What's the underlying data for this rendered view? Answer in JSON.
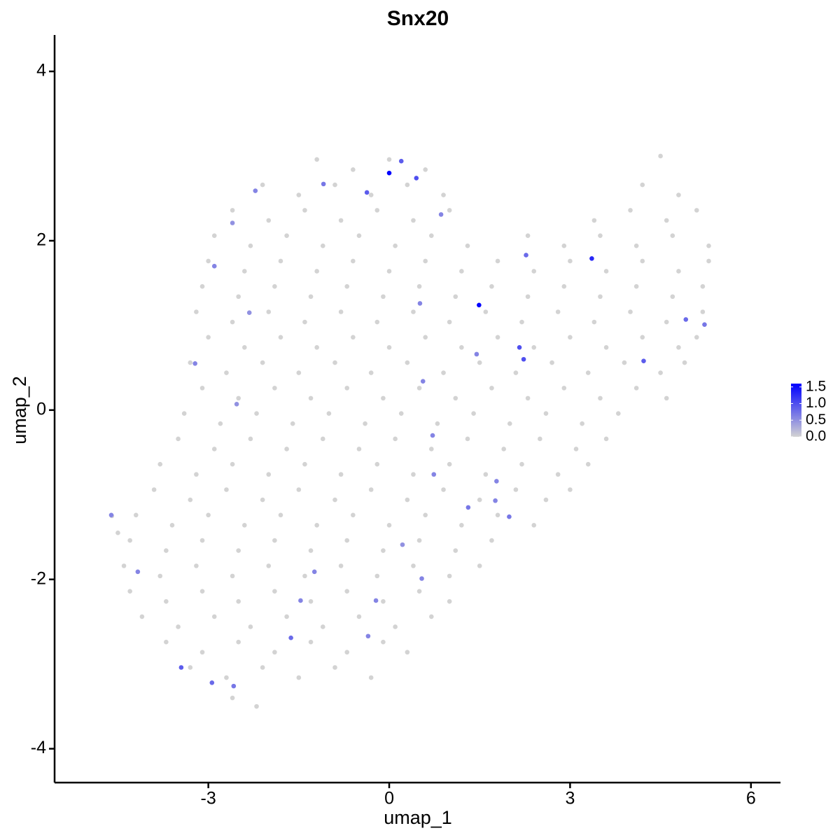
{
  "chart_data": {
    "type": "scatter",
    "title": "Snx20",
    "x_label": "umap_1",
    "y_label": "umap_2",
    "x": [
      -1.2,
      -0.6,
      0,
      0.6,
      4.5,
      -2.1,
      -1.5,
      -0.9,
      -0.3,
      0.3,
      0.9,
      4.2,
      4.8,
      -2.6,
      -2.0,
      -1.4,
      -0.8,
      -0.2,
      0.4,
      1.0,
      3.4,
      4.0,
      4.6,
      5.1,
      -2.9,
      -2.3,
      -1.7,
      -1.1,
      -0.5,
      0.1,
      0.7,
      1.3,
      2.3,
      2.9,
      3.5,
      4.1,
      4.7,
      5.3,
      -3.0,
      -2.4,
      -1.8,
      -1.2,
      -0.6,
      0,
      0.6,
      1.2,
      1.8,
      2.4,
      3.0,
      3.6,
      4.2,
      4.8,
      5.3,
      -3.1,
      -2.5,
      -1.9,
      -1.3,
      -0.7,
      -0.1,
      0.5,
      1.1,
      1.7,
      2.3,
      2.9,
      3.5,
      4.1,
      4.7,
      5.2,
      -3.2,
      -2.6,
      -2.0,
      -1.4,
      -0.8,
      -0.2,
      0.4,
      1.0,
      1.6,
      2.2,
      2.8,
      3.4,
      4.0,
      4.6,
      5.2,
      -3.0,
      -2.4,
      -1.8,
      -1.2,
      -0.6,
      0,
      0.6,
      1.2,
      1.8,
      2.4,
      3.0,
      3.6,
      4.2,
      4.8,
      5.1,
      -3.3,
      -2.7,
      -2.1,
      -1.5,
      -0.9,
      -0.3,
      0.3,
      0.9,
      1.5,
      2.1,
      2.7,
      3.3,
      3.9,
      4.5,
      4.9,
      -3.1,
      -2.5,
      -1.9,
      -1.3,
      -0.7,
      -0.1,
      0.5,
      1.1,
      1.7,
      2.3,
      2.9,
      3.5,
      4.1,
      4.6,
      -3.4,
      -2.8,
      -2.2,
      -1.6,
      -1.0,
      -0.4,
      0.2,
      0.8,
      1.4,
      2.0,
      2.6,
      3.2,
      3.8,
      -3.5,
      -2.9,
      -2.3,
      -1.7,
      -1.1,
      -0.5,
      0.1,
      0.7,
      1.3,
      1.9,
      2.5,
      3.1,
      3.6,
      -3.8,
      -3.2,
      -2.6,
      -2.0,
      -1.4,
      -0.8,
      -0.2,
      0.4,
      1.0,
      1.6,
      2.2,
      2.8,
      3.3,
      -3.9,
      -3.3,
      -2.7,
      -2.1,
      -1.5,
      -0.9,
      -0.3,
      0.3,
      0.9,
      1.5,
      2.1,
      2.6,
      3.0,
      -4.2,
      -3.6,
      -3.0,
      -2.4,
      -1.8,
      -1.2,
      -0.6,
      0,
      0.6,
      1.2,
      1.8,
      2.4,
      -4.3,
      -3.7,
      -3.1,
      -2.5,
      -1.9,
      -1.3,
      -0.7,
      -0.1,
      0.5,
      1.1,
      1.7,
      -4.4,
      -3.8,
      -3.2,
      -2.6,
      -2.0,
      -1.4,
      -0.8,
      -0.2,
      0.4,
      1.0,
      1.5,
      -4.3,
      -3.7,
      -3.1,
      -2.5,
      -1.9,
      -1.3,
      -0.7,
      -0.1,
      0.5,
      1.0,
      -4.1,
      -3.5,
      -2.9,
      -2.3,
      -1.7,
      -1.1,
      -0.5,
      0.1,
      0.7,
      -3.7,
      -3.1,
      -2.5,
      -1.9,
      -1.3,
      -0.7,
      -0.1,
      0.3,
      -3.3,
      -2.7,
      -2.1,
      -1.5,
      -0.9,
      -0.3,
      -2.6,
      -2.2,
      -4.6,
      -4.5,
      -4.61,
      -4.17,
      -3.45,
      -3.22,
      -2.94,
      -2.9,
      -2.6,
      -2.58,
      -2.53,
      -2.32,
      -2.22,
      -1.63,
      -1.47,
      -1.24,
      -1.09,
      -0.37,
      -0.35,
      -0.22,
      0.0,
      0.2,
      0.22,
      0.45,
      0.51,
      0.54,
      0.56,
      0.72,
      0.74,
      0.86,
      1.31,
      1.45,
      1.49,
      1.76,
      1.78,
      1.99,
      2.16,
      2.23,
      2.27,
      3.36,
      4.22,
      4.92,
      5.23
    ],
    "y": [
      2.96,
      2.84,
      2.96,
      2.84,
      3.0,
      2.66,
      2.54,
      2.66,
      2.54,
      2.66,
      2.54,
      2.66,
      2.54,
      2.36,
      2.24,
      2.36,
      2.24,
      2.36,
      2.24,
      2.36,
      2.24,
      2.36,
      2.24,
      2.36,
      2.06,
      1.94,
      2.06,
      1.94,
      2.06,
      1.94,
      2.06,
      1.94,
      2.06,
      1.94,
      2.06,
      1.94,
      2.06,
      1.94,
      1.76,
      1.64,
      1.76,
      1.64,
      1.76,
      1.64,
      1.76,
      1.64,
      1.76,
      1.64,
      1.76,
      1.64,
      1.76,
      1.64,
      1.76,
      1.46,
      1.34,
      1.46,
      1.34,
      1.46,
      1.34,
      1.46,
      1.34,
      1.46,
      1.34,
      1.46,
      1.34,
      1.46,
      1.34,
      1.46,
      1.16,
      1.04,
      1.16,
      1.04,
      1.16,
      1.04,
      1.16,
      1.04,
      1.16,
      1.04,
      1.16,
      1.04,
      1.16,
      1.04,
      1.16,
      0.86,
      0.74,
      0.86,
      0.74,
      0.86,
      0.74,
      0.86,
      0.74,
      0.86,
      0.74,
      0.86,
      0.74,
      0.86,
      0.74,
      0.86,
      0.56,
      0.44,
      0.56,
      0.44,
      0.56,
      0.44,
      0.56,
      0.44,
      0.56,
      0.44,
      0.56,
      0.44,
      0.56,
      0.44,
      0.56,
      0.26,
      0.14,
      0.26,
      0.14,
      0.26,
      0.14,
      0.26,
      0.14,
      0.26,
      0.14,
      0.26,
      0.14,
      0.26,
      0.14,
      -0.04,
      -0.16,
      -0.04,
      -0.16,
      -0.04,
      -0.16,
      -0.04,
      -0.16,
      -0.04,
      -0.16,
      -0.04,
      -0.16,
      -0.04,
      -0.34,
      -0.46,
      -0.34,
      -0.46,
      -0.34,
      -0.46,
      -0.34,
      -0.46,
      -0.34,
      -0.46,
      -0.34,
      -0.46,
      -0.34,
      -0.64,
      -0.76,
      -0.64,
      -0.76,
      -0.64,
      -0.76,
      -0.64,
      -0.76,
      -0.64,
      -0.76,
      -0.64,
      -0.76,
      -0.64,
      -0.94,
      -1.06,
      -0.94,
      -1.06,
      -0.94,
      -1.06,
      -0.94,
      -1.06,
      -0.94,
      -1.06,
      -0.94,
      -1.06,
      -0.94,
      -1.24,
      -1.36,
      -1.24,
      -1.36,
      -1.24,
      -1.36,
      -1.24,
      -1.36,
      -1.24,
      -1.36,
      -1.24,
      -1.36,
      -1.54,
      -1.66,
      -1.54,
      -1.66,
      -1.54,
      -1.66,
      -1.54,
      -1.66,
      -1.54,
      -1.66,
      -1.54,
      -1.84,
      -1.96,
      -1.84,
      -1.96,
      -1.84,
      -1.96,
      -1.84,
      -1.96,
      -1.84,
      -1.96,
      -1.84,
      -2.14,
      -2.26,
      -2.14,
      -2.26,
      -2.14,
      -2.26,
      -2.14,
      -2.26,
      -2.14,
      -2.26,
      -2.44,
      -2.56,
      -2.44,
      -2.56,
      -2.44,
      -2.56,
      -2.44,
      -2.56,
      -2.44,
      -2.74,
      -2.86,
      -2.74,
      -2.86,
      -2.74,
      -2.86,
      -2.74,
      -2.86,
      -3.04,
      -3.16,
      -3.04,
      -3.16,
      -3.04,
      -3.16,
      -3.4,
      -3.5,
      -1.25,
      -1.45,
      -1.24,
      -1.91,
      -3.04,
      0.55,
      -3.22,
      1.7,
      2.21,
      -3.26,
      0.07,
      1.15,
      2.59,
      -2.69,
      -2.25,
      -1.91,
      2.67,
      2.57,
      -2.67,
      -2.25,
      2.8,
      2.94,
      -1.59,
      2.74,
      1.26,
      -1.99,
      0.34,
      -0.3,
      -0.76,
      2.31,
      -1.15,
      0.66,
      1.24,
      -1.07,
      -0.84,
      -1.26,
      0.74,
      0.6,
      1.83,
      1.79,
      0.58,
      1.07,
      1.01
    ],
    "values": [
      0,
      0,
      0,
      0,
      0,
      0,
      0,
      0,
      0,
      0,
      0,
      0,
      0,
      0,
      0,
      0,
      0,
      0,
      0,
      0,
      0,
      0,
      0,
      0,
      0,
      0,
      0,
      0,
      0,
      0,
      0,
      0,
      0,
      0,
      0,
      0,
      0,
      0,
      0,
      0,
      0,
      0,
      0,
      0,
      0,
      0,
      0,
      0,
      0,
      0,
      0,
      0,
      0,
      0,
      0,
      0,
      0,
      0,
      0,
      0,
      0,
      0,
      0,
      0,
      0,
      0,
      0,
      0,
      0,
      0,
      0,
      0,
      0,
      0,
      0,
      0,
      0,
      0,
      0,
      0,
      0,
      0,
      0,
      0,
      0,
      0,
      0,
      0,
      0,
      0,
      0,
      0,
      0,
      0,
      0,
      0,
      0,
      0,
      0,
      0,
      0,
      0,
      0,
      0,
      0,
      0,
      0,
      0,
      0,
      0,
      0,
      0,
      0,
      0,
      0,
      0,
      0,
      0,
      0,
      0,
      0,
      0,
      0,
      0,
      0,
      0,
      0,
      0,
      0,
      0,
      0,
      0,
      0,
      0,
      0,
      0,
      0,
      0,
      0,
      0,
      0,
      0,
      0,
      0,
      0,
      0,
      0,
      0,
      0,
      0,
      0,
      0,
      0,
      0,
      0,
      0,
      0,
      0,
      0,
      0,
      0,
      0,
      0,
      0,
      0,
      0,
      0,
      0,
      0,
      0,
      0,
      0,
      0,
      0,
      0,
      0,
      0,
      0,
      0,
      0,
      0,
      0,
      0,
      0,
      0,
      0,
      0,
      0,
      0,
      0,
      0,
      0,
      0,
      0,
      0,
      0,
      0,
      0,
      0,
      0,
      0,
      0,
      0,
      0,
      0,
      0,
      0,
      0,
      0,
      0,
      0,
      0,
      0,
      0,
      0,
      0,
      0,
      0,
      0,
      0,
      0,
      0,
      0,
      0,
      0,
      0,
      0,
      0,
      0,
      0,
      0,
      0,
      0,
      0,
      0,
      0,
      0,
      0,
      0,
      0,
      0,
      0,
      0,
      0,
      0,
      0,
      0,
      0,
      0,
      0,
      0.6,
      0.6,
      0.9,
      0.6,
      0.8,
      0.6,
      0.5,
      0.7,
      0.5,
      0.5,
      0.6,
      0.8,
      0.6,
      0.6,
      0.7,
      0.9,
      0.6,
      0.6,
      1.6,
      0.9,
      0.5,
      1.0,
      0.6,
      0.6,
      0.6,
      0.6,
      0.6,
      0.6,
      0.7,
      0.6,
      1.6,
      0.6,
      0.6,
      0.7,
      1.0,
      1.0,
      0.8,
      1.3,
      0.9,
      0.8,
      0.7
    ],
    "xlim": [
      -5.55,
      6.49
    ],
    "ylim": [
      -4.4,
      4.43
    ],
    "xticks": [
      -3,
      0,
      3,
      6
    ],
    "yticks": [
      -4,
      -2,
      0,
      2,
      4
    ],
    "color_low": "#d3d3d3",
    "color_high": "#0000ff",
    "clim": [
      0,
      1.6
    ],
    "legend_ticks": [
      {
        "value": 0,
        "label": "0.0"
      },
      {
        "value": 0.5,
        "label": "0.5"
      },
      {
        "value": 1,
        "label": "1.0"
      },
      {
        "value": 1.5,
        "label": "1.5"
      }
    ]
  }
}
